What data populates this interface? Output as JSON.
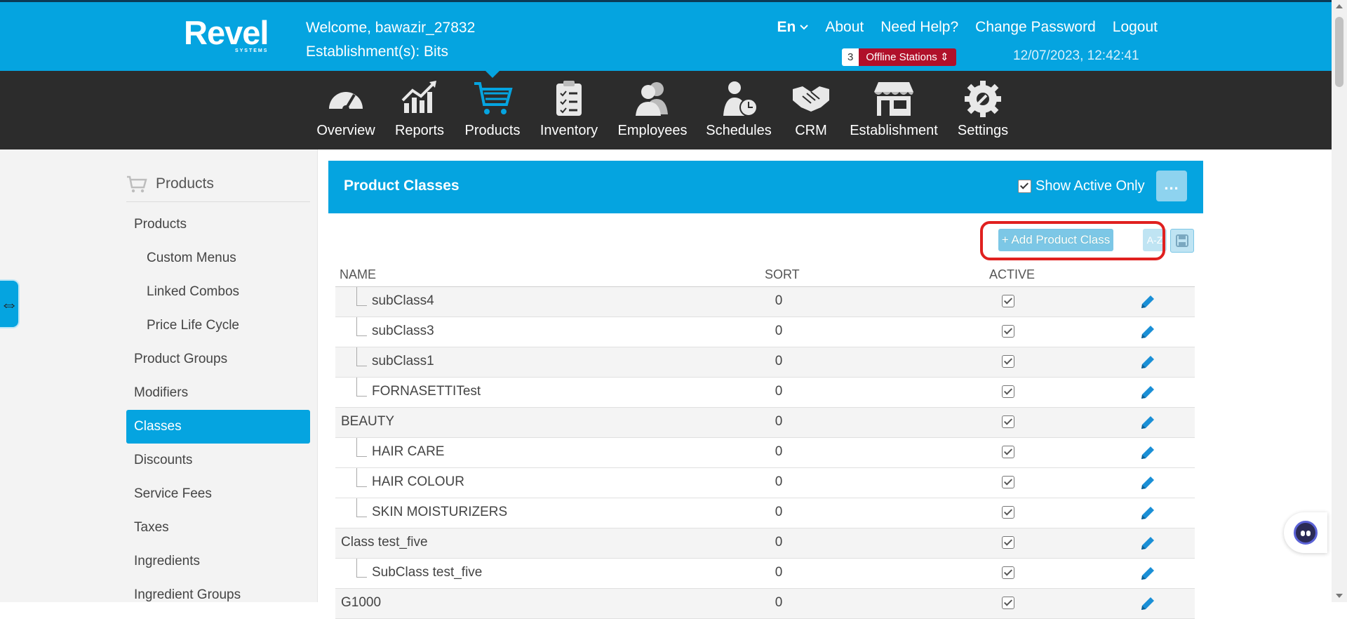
{
  "header": {
    "logo_text": "Revel",
    "logo_sub": "SYSTEMS",
    "welcome": "Welcome, bawazir_27832",
    "establishment": "Establishment(s): Bits",
    "lang": "En",
    "links": [
      "About",
      "Need Help?",
      "Change Password",
      "Logout"
    ],
    "offline_count": "3",
    "offline_label": "Offline Stations",
    "datetime": "12/07/2023, 12:42:41"
  },
  "mainnav": {
    "items": [
      {
        "label": "Overview",
        "icon": "dashboard-icon"
      },
      {
        "label": "Reports",
        "icon": "chart-icon"
      },
      {
        "label": "Products",
        "icon": "cart-icon"
      },
      {
        "label": "Inventory",
        "icon": "clipboard-icon"
      },
      {
        "label": "Employees",
        "icon": "employees-icon"
      },
      {
        "label": "Schedules",
        "icon": "schedule-icon"
      },
      {
        "label": "CRM",
        "icon": "handshake-icon"
      },
      {
        "label": "Establishment",
        "icon": "store-icon"
      },
      {
        "label": "Settings",
        "icon": "gear-icon"
      }
    ],
    "active": "Products"
  },
  "sidebar": {
    "title": "Products",
    "items": [
      {
        "label": "Products"
      },
      {
        "label": "Custom Menus"
      },
      {
        "label": "Linked Combos"
      },
      {
        "label": "Price Life Cycle"
      },
      {
        "label": "Product Groups"
      },
      {
        "label": "Modifiers"
      },
      {
        "label": "Classes"
      },
      {
        "label": "Discounts"
      },
      {
        "label": "Service Fees"
      },
      {
        "label": "Taxes"
      },
      {
        "label": "Ingredients"
      },
      {
        "label": "Ingredient Groups"
      }
    ],
    "expander": "⇔"
  },
  "panel": {
    "title": "Product Classes",
    "show_active_label": "Show Active Only",
    "more": "...",
    "add_button": "+ Add Product Class",
    "az_button": "A-Z",
    "columns": [
      "NAME",
      "SORT",
      "ACTIVE"
    ],
    "rows": [
      {
        "name": "subClass4",
        "sort": "0"
      },
      {
        "name": "subClass3",
        "sort": "0"
      },
      {
        "name": "subClass1",
        "sort": "0"
      },
      {
        "name": "FORNASETTITest",
        "sort": "0"
      },
      {
        "name": "BEAUTY",
        "sort": "0"
      },
      {
        "name": "HAIR CARE",
        "sort": "0"
      },
      {
        "name": "HAIR COLOUR",
        "sort": "0"
      },
      {
        "name": "SKIN MOISTURIZERS",
        "sort": "0"
      },
      {
        "name": "Class test_five",
        "sort": "0"
      },
      {
        "name": "SubClass test_five",
        "sort": "0"
      },
      {
        "name": "G1000",
        "sort": "0"
      }
    ]
  },
  "colors": {
    "brand": "#05a4e0",
    "nav_bg": "#2c2c2c",
    "offline_badge": "#b0102a",
    "highlight": "#e0201f"
  }
}
